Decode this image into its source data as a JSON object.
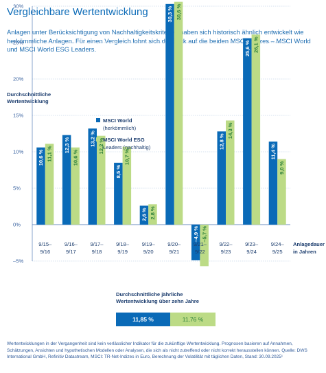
{
  "title": "Vergleichbare Wertentwicklung",
  "intro": "Anlagen unter Berücksichtigung von Nachhaltigkeitskriterien haben sich historisch ähnlich entwickelt wie herkömmliche Anlagen. Für einen Vergleich lohnt sich der Blick auf die beiden MSCI-Indizes – MSCI World und MSCI World ESG Leaders.",
  "colors": {
    "primary": "#0a6ab7",
    "esg": "#bcdb86",
    "esg_text": "#2c7f3a",
    "text_dark": "#1c3d6e"
  },
  "chart_data": {
    "type": "bar",
    "ylabel": "Durchschnittliche\nWertentwicklung",
    "xlabel": "Anlagedauer\nin Jahren",
    "ylim": [
      -5,
      30
    ],
    "yticks": [
      "30%",
      "25%",
      "20%",
      "15%",
      "10%",
      "5%",
      "0%",
      "–5%"
    ],
    "ytick_values": [
      30,
      25,
      20,
      15,
      10,
      5,
      0,
      -5
    ],
    "grid": true,
    "legend_position": "top-left",
    "categories": [
      [
        "9/15–",
        "9/16"
      ],
      [
        "9/16–",
        "9/17"
      ],
      [
        "9/17–",
        "9/18"
      ],
      [
        "9/18–",
        "9/19"
      ],
      [
        "9/19–",
        "9/20"
      ],
      [
        "9/20–",
        "9/21"
      ],
      [
        "9/21–",
        "9/22"
      ],
      [
        "9/22–",
        "9/23"
      ],
      [
        "9/23–",
        "9/24"
      ],
      [
        "9/24–",
        "9/25"
      ]
    ],
    "series": [
      {
        "name": "MSCI World",
        "name_sub": "(herkömmlich)",
        "values": [
          10.6,
          12.3,
          13.2,
          8.5,
          2.6,
          30.3,
          -4.9,
          12.8,
          25.6,
          11.4
        ],
        "labels": [
          "10,6 %",
          "12,3 %",
          "13,2 %",
          "8,5 %",
          "2,6 %",
          "30,3 %",
          "–4,9 %",
          "12,8 %",
          "25,6 %",
          "11,4 %"
        ]
      },
      {
        "name": "MSCI World ESG",
        "name_sub": "Leaders (nachhaltig)",
        "values": [
          11.1,
          10.6,
          12.2,
          10.7,
          2.8,
          30.6,
          -5.7,
          14.3,
          26.1,
          9.0
        ],
        "labels": [
          "11,1 %",
          "10,6 %",
          "12,2 %",
          "10,7 %",
          "2,8 %",
          "30,6 %",
          "–5,7 %",
          "14,3 %",
          "26,1 %",
          "9,0 %"
        ]
      }
    ]
  },
  "average": {
    "title": "Durchschnittliche jährliche\nWertentwicklung über zehn Jahre",
    "msci_world": "11,85 %",
    "msci_esg": "11,76 %"
  },
  "footnote": "Wertentwicklungen in der Vergangenheit sind kein verlässlicher Indikator für die zukünftige Wertentwicklung. Prognosen basieren auf Annahmen, Schätzungen, Ansichten und hypothetischen Modellen oder Analysen, die sich als nicht zutreffend oder nicht korrekt herausstellen können. Quelle: DWS International GmbH, Refinitiv Datastream, MSCI: TR-Net-Indizes in Euro, Berechnung der Volatilität mit täglichen Daten, Stand: 30.09.2025¹"
}
